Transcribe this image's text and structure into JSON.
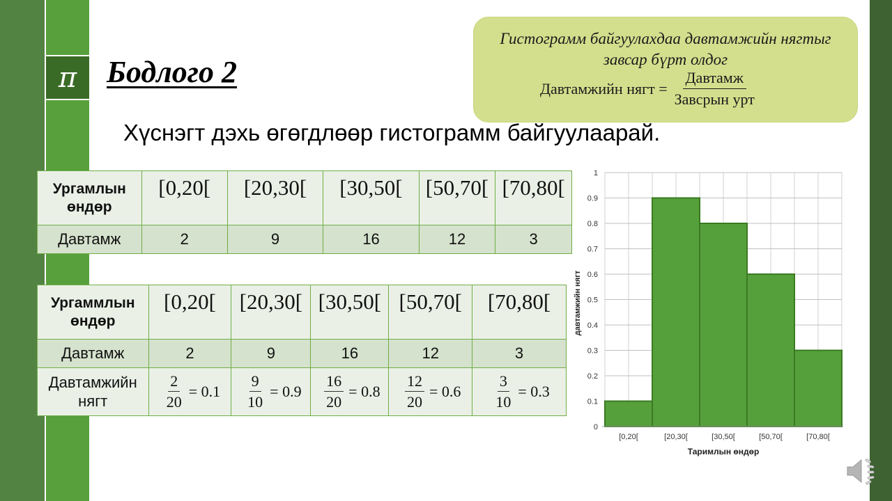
{
  "slide": {
    "title": "Бодлого 2",
    "pi_symbol": "π",
    "instruction": "Хүснэгт дэхь өгөгдлөөр гистограмм байгуулаарай."
  },
  "callout": {
    "line1": "Гистограмм байгуулахдаа давтамжийн нягтыг",
    "line2": "завсар бүрт олдог",
    "formula_lhs": "Давтамжийн нягт =",
    "formula_num": "Давтамж",
    "formula_den": "Завсрын урт"
  },
  "table1": {
    "header_label": "Ургамлын өндөр",
    "header_line1": "Ургамлын",
    "header_line2": "өндөр",
    "intervals": [
      "[0,20[",
      "[20,30[",
      "[30,50[",
      "[50,70[",
      "[70,80["
    ],
    "freq_label": "Давтамж",
    "frequencies": [
      "2",
      "9",
      "16",
      "12",
      "3"
    ]
  },
  "table2": {
    "header_line1": "Ургаммлын",
    "header_line2": "өндөр",
    "intervals": [
      "[0,20[",
      "[20,30[",
      "[30,50[",
      "[50,70[",
      "[70,80["
    ],
    "freq_label": "Давтамж",
    "frequencies": [
      "2",
      "9",
      "16",
      "12",
      "3"
    ],
    "density_line1": "Давтамжийн",
    "density_line2": "нягт",
    "densities": [
      {
        "num": "2",
        "den": "20",
        "result": "= 0.1"
      },
      {
        "num": "9",
        "den": "10",
        "result": "= 0.9"
      },
      {
        "num": "16",
        "den": "20",
        "result": "= 0.8"
      },
      {
        "num": "12",
        "den": "20",
        "result": "= 0.6"
      },
      {
        "num": "3",
        "den": "10",
        "result": "= 0.3"
      }
    ]
  },
  "colors": {
    "bar_fill": "#56a03c",
    "bar_stroke": "#3a7a22",
    "grid": "#d0d0d0",
    "band_dark": "#538343",
    "band_light": "#58a03c",
    "callout_bg": "#d4df8d"
  },
  "chart_data": {
    "type": "bar",
    "subtype": "histogram",
    "categories": [
      "[0,20[",
      "[20,30[",
      "[30,50[",
      "[50,70[",
      "[70,80["
    ],
    "values": [
      0.1,
      0.9,
      0.8,
      0.6,
      0.3
    ],
    "title": "",
    "xlabel": "Таримлын өндөр",
    "ylabel": "давтамжийн нягт",
    "ylim": [
      0,
      1
    ],
    "yticks": [
      "0",
      "0.1",
      "0.2",
      "0.3",
      "0.4",
      "0.5",
      "0.6",
      "0.7",
      "0.8",
      "0.9",
      "1"
    ],
    "grid": true,
    "legend": "none"
  },
  "icons": {
    "sound": "speaker-icon"
  }
}
